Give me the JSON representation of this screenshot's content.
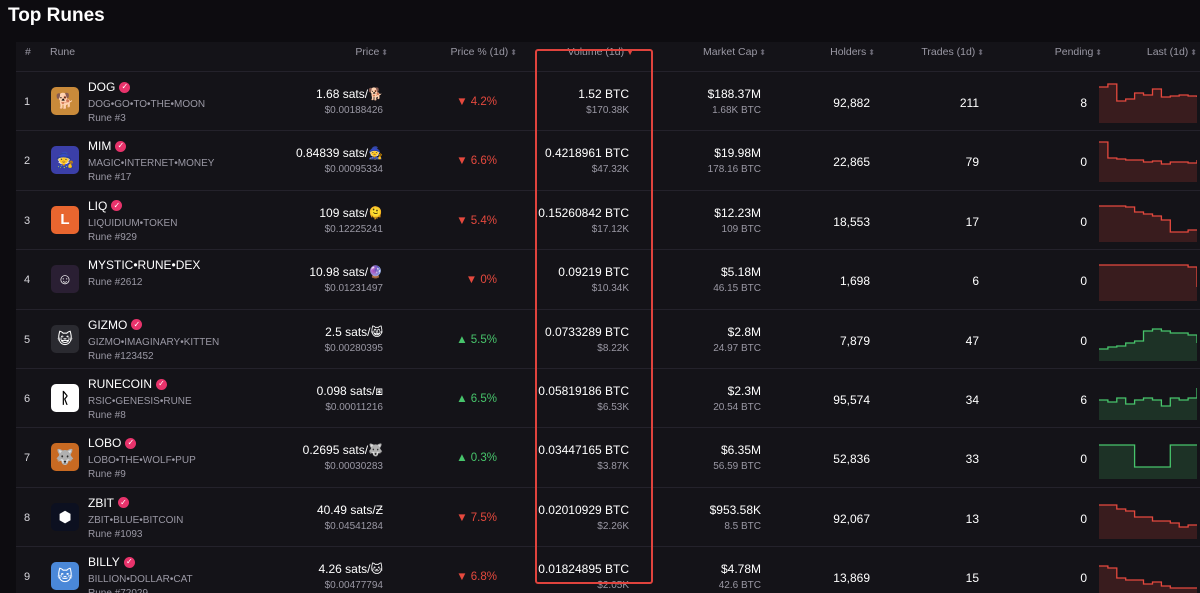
{
  "page": {
    "title": "Top Runes"
  },
  "colors": {
    "down": "#e5493e",
    "up": "#47c46b",
    "highlight": "#e0433d",
    "verified": "#e8336b"
  },
  "columns": {
    "rank": "#",
    "rune": "Rune",
    "price": "Price",
    "price_change": "Price % (1d)",
    "volume": "Volume (1d)",
    "market_cap": "Market Cap",
    "holders": "Holders",
    "trades": "Trades (1d)",
    "pending": "Pending",
    "last": "Last (1d)"
  },
  "rows": [
    {
      "rank": "1",
      "name": "DOG",
      "verified": true,
      "spaced_name": "DOG•GO•TO•THE•MOON",
      "rune_number": "Rune #3",
      "logo_icon": "dog-logo-icon",
      "logo_color": "#c98a3a",
      "logo_glyph": "🐕",
      "price": "1.68 sats/🐕",
      "price_usd": "$0.00188426",
      "change": "4.2%",
      "direction": "down",
      "volume": "1.52 BTC",
      "volume_usd": "$170.38K",
      "market_cap": "$188.37M",
      "market_cap_btc": "1.68K BTC",
      "holders": "92,882",
      "trades": "211",
      "pending": "8",
      "spark": [
        6,
        3,
        20,
        18,
        12,
        14,
        8,
        16,
        15,
        14,
        15,
        16
      ],
      "spark_trend": "down"
    },
    {
      "rank": "2",
      "name": "MIM",
      "verified": true,
      "spaced_name": "MAGIC•INTERNET•MONEY",
      "rune_number": "Rune #17",
      "logo_icon": "mim-logo-icon",
      "logo_color": "#3b3fa8",
      "logo_glyph": "🧙",
      "price": "0.84839 sats/🧙",
      "price_usd": "$0.00095334",
      "change": "6.6%",
      "direction": "down",
      "volume": "0.4218961 BTC",
      "volume_usd": "$47.32K",
      "market_cap": "$19.98M",
      "market_cap_btc": "178.16 BTC",
      "holders": "22,865",
      "trades": "79",
      "pending": "0",
      "spark": [
        2,
        18,
        19,
        20,
        20,
        22,
        21,
        24,
        22,
        22,
        23,
        20
      ],
      "spark_trend": "down"
    },
    {
      "rank": "3",
      "name": "LIQ",
      "verified": true,
      "spaced_name": "LIQUIDIUM•TOKEN",
      "rune_number": "Rune #929",
      "logo_icon": "liq-logo-icon",
      "logo_color": "#e8662f",
      "logo_glyph": "L",
      "price": "109 sats/🫠",
      "price_usd": "$0.12225241",
      "change": "5.4%",
      "direction": "down",
      "volume": "0.15260842 BTC",
      "volume_usd": "$17.12K",
      "market_cap": "$12.23M",
      "market_cap_btc": "109 BTC",
      "holders": "18,553",
      "trades": "17",
      "pending": "0",
      "spark": [
        6,
        6,
        6,
        7,
        12,
        14,
        16,
        20,
        32,
        32,
        30,
        30
      ],
      "spark_trend": "down"
    },
    {
      "rank": "4",
      "name": "MYSTIC•RUNE•DEX",
      "verified": false,
      "spaced_name": "",
      "rune_number": "Rune #2612",
      "logo_icon": "mystic-logo-icon",
      "logo_color": "#2a1f33",
      "logo_glyph": "☺",
      "price": "10.98 sats/🔮",
      "price_usd": "$0.01231497",
      "change": "0%",
      "direction": "down",
      "volume": "0.09219 BTC",
      "volume_usd": "$10.34K",
      "market_cap": "$5.18M",
      "market_cap_btc": "46.15 BTC",
      "holders": "1,698",
      "trades": "6",
      "pending": "0",
      "spark": [
        6,
        6,
        6,
        6,
        6,
        6,
        6,
        6,
        6,
        6,
        8,
        28
      ],
      "spark_trend": "down"
    },
    {
      "rank": "5",
      "name": "GIZMO",
      "verified": true,
      "spaced_name": "GIZMO•IMAGINARY•KITTEN",
      "rune_number": "Rune #123452",
      "logo_icon": "gizmo-logo-icon",
      "logo_color": "#2a2a30",
      "logo_glyph": "😺",
      "price": "2.5 sats/😸",
      "price_usd": "$0.00280395",
      "change": "5.5%",
      "direction": "up",
      "volume": "0.0733289 BTC",
      "volume_usd": "$8.22K",
      "market_cap": "$2.8M",
      "market_cap_btc": "24.97 BTC",
      "holders": "7,879",
      "trades": "47",
      "pending": "0",
      "spark": [
        30,
        28,
        27,
        24,
        22,
        12,
        10,
        12,
        14,
        14,
        16,
        24
      ],
      "spark_trend": "up"
    },
    {
      "rank": "6",
      "name": "RUNECOIN",
      "verified": true,
      "spaced_name": "RSIC•GENESIS•RUNE",
      "rune_number": "Rune #8",
      "logo_icon": "runecoin-logo-icon",
      "logo_color": "#ffffff",
      "logo_glyph": "ᚱ",
      "price": "0.098 sats/⧆",
      "price_usd": "$0.00011216",
      "change": "6.5%",
      "direction": "up",
      "volume": "0.05819186 BTC",
      "volume_usd": "$6.53K",
      "market_cap": "$2.3M",
      "market_cap_btc": "20.54 BTC",
      "holders": "95,574",
      "trades": "34",
      "pending": "6",
      "spark": [
        22,
        24,
        20,
        26,
        22,
        20,
        22,
        28,
        20,
        22,
        20,
        10
      ],
      "spark_trend": "up"
    },
    {
      "rank": "7",
      "name": "LOBO",
      "verified": true,
      "spaced_name": "LOBO•THE•WOLF•PUP",
      "rune_number": "Rune #9",
      "logo_icon": "lobo-logo-icon",
      "logo_color": "#c86a22",
      "logo_glyph": "🐺",
      "price": "0.2695 sats/🐺",
      "price_usd": "$0.00030283",
      "change": "0.3%",
      "direction": "up",
      "volume": "0.03447165 BTC",
      "volume_usd": "$3.87K",
      "market_cap": "$6.35M",
      "market_cap_btc": "56.59 BTC",
      "holders": "52,836",
      "trades": "33",
      "pending": "0",
      "spark": [
        8,
        8,
        8,
        8,
        30,
        30,
        30,
        30,
        8,
        8,
        8,
        8
      ],
      "spark_trend": "up"
    },
    {
      "rank": "8",
      "name": "ZBIT",
      "verified": true,
      "spaced_name": "ZBIT•BLUE•BITCOIN",
      "rune_number": "Rune #1093",
      "logo_icon": "zbit-logo-icon",
      "logo_color": "#0c1020",
      "logo_glyph": "⬢",
      "price": "40.49 sats/Ƶ",
      "price_usd": "$0.04541284",
      "change": "7.5%",
      "direction": "down",
      "volume": "0.02010929 BTC",
      "volume_usd": "$2.26K",
      "market_cap": "$953.58K",
      "market_cap_btc": "8.5 BTC",
      "holders": "92,067",
      "trades": "13",
      "pending": "0",
      "spark": [
        8,
        8,
        12,
        14,
        20,
        20,
        24,
        24,
        26,
        30,
        28,
        28
      ],
      "spark_trend": "down"
    },
    {
      "rank": "9",
      "name": "BILLY",
      "verified": true,
      "spaced_name": "BILLION•DOLLAR•CAT",
      "rune_number": "Rune #72029",
      "logo_icon": "billy-logo-icon",
      "logo_color": "#4a88d8",
      "logo_glyph": "🐱",
      "price": "4.26 sats/🐱",
      "price_usd": "$0.00477794",
      "change": "6.8%",
      "direction": "down",
      "volume": "0.01824895 BTC",
      "volume_usd": "$2.05K",
      "market_cap": "$4.78M",
      "market_cap_btc": "42.6 BTC",
      "holders": "13,869",
      "trades": "15",
      "pending": "0",
      "spark": [
        10,
        12,
        22,
        24,
        24,
        28,
        26,
        30,
        32,
        32,
        32,
        32
      ],
      "spark_trend": "down"
    }
  ]
}
